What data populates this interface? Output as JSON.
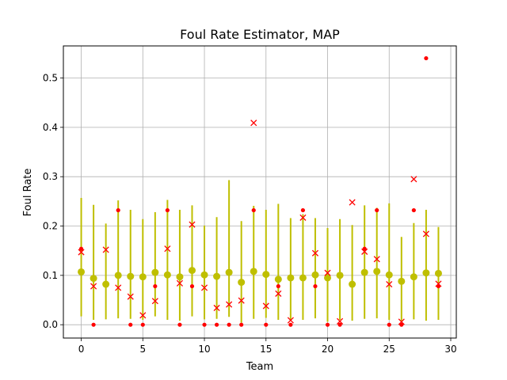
{
  "chart_data": {
    "type": "scatter",
    "title": "Foul Rate Estimator, MAP",
    "xlabel": "Team",
    "ylabel": "Foul Rate",
    "xlim": [
      -1.45,
      30.45
    ],
    "ylim": [
      -0.027,
      0.565
    ],
    "xticks": [
      0,
      5,
      10,
      15,
      20,
      25,
      30
    ],
    "yticks": [
      0.0,
      0.1,
      0.2,
      0.3,
      0.4,
      0.5
    ],
    "xtick_labels": [
      "0",
      "5",
      "10",
      "15",
      "20",
      "25",
      "30"
    ],
    "ytick_labels": [
      "0.0",
      "0.1",
      "0.2",
      "0.3",
      "0.4",
      "0.5"
    ],
    "grid": true,
    "colors": {
      "estimate": "#bfbf00",
      "interval": "#bfbf00",
      "x_marker": "#ff0000",
      "dot_marker": "#ff0000",
      "grid": "#b0b0b0"
    },
    "series": [
      {
        "marker": "circle",
        "x": [
          0,
          1,
          2,
          3,
          4,
          5,
          6,
          7,
          8,
          9,
          10,
          11,
          12,
          13,
          14,
          15,
          16,
          17,
          18,
          19,
          20,
          21,
          22,
          23,
          24,
          25,
          26,
          27,
          28,
          29
        ],
        "values": [
          0.107,
          0.094,
          0.082,
          0.1,
          0.098,
          0.097,
          0.106,
          0.101,
          0.097,
          0.11,
          0.101,
          0.098,
          0.106,
          0.086,
          0.108,
          0.102,
          0.092,
          0.095,
          0.095,
          0.101,
          0.095,
          0.1,
          0.082,
          0.106,
          0.108,
          0.101,
          0.088,
          0.097,
          0.105,
          0.104
        ],
        "lower": [
          0.017,
          0.01,
          0.011,
          0.013,
          0.012,
          0.01,
          0.017,
          0.01,
          0.008,
          0.017,
          0.011,
          0.012,
          0.016,
          0.004,
          0.012,
          0.014,
          0.01,
          0.008,
          0.01,
          0.013,
          0.006,
          0.01,
          0.008,
          0.012,
          0.013,
          0.01,
          0.005,
          0.011,
          0.008,
          0.01
        ],
        "upper": [
          0.257,
          0.243,
          0.205,
          0.252,
          0.233,
          0.214,
          0.228,
          0.253,
          0.233,
          0.242,
          0.201,
          0.218,
          0.293,
          0.21,
          0.241,
          0.233,
          0.245,
          0.216,
          0.224,
          0.216,
          0.196,
          0.214,
          0.202,
          0.242,
          0.237,
          0.246,
          0.178,
          0.206,
          0.233,
          0.198
        ]
      },
      {
        "marker": "x",
        "x": [
          0,
          1,
          2,
          3,
          4,
          5,
          6,
          7,
          8,
          9,
          10,
          11,
          12,
          13,
          14,
          15,
          16,
          17,
          18,
          19,
          20,
          21,
          22,
          23,
          24,
          25,
          26,
          27,
          28,
          29
        ],
        "values": [
          0.147,
          0.078,
          0.152,
          0.075,
          0.057,
          0.019,
          0.048,
          0.154,
          0.084,
          0.203,
          0.075,
          0.034,
          0.041,
          0.049,
          0.409,
          0.038,
          0.063,
          0.009,
          0.217,
          0.145,
          0.105,
          0.007,
          0.248,
          0.148,
          0.133,
          0.082,
          0.006,
          0.295,
          0.184,
          0.083
        ]
      },
      {
        "marker": "dot",
        "x": [
          0,
          1,
          3,
          4,
          5,
          6,
          7,
          8,
          9,
          10,
          11,
          12,
          13,
          14,
          15,
          16,
          17,
          18,
          19,
          20,
          21,
          23,
          24,
          25,
          26,
          27,
          28,
          29
        ],
        "values": [
          0.154,
          0.0,
          0.232,
          0.0,
          0.0,
          0.078,
          0.232,
          0.0,
          0.078,
          0.0,
          0.0,
          0.0,
          0.0,
          0.232,
          0.0,
          0.078,
          0.0,
          0.232,
          0.078,
          0.0,
          0.0,
          0.154,
          0.232,
          0.0,
          0.0,
          0.232,
          0.54,
          0.078
        ]
      }
    ]
  }
}
